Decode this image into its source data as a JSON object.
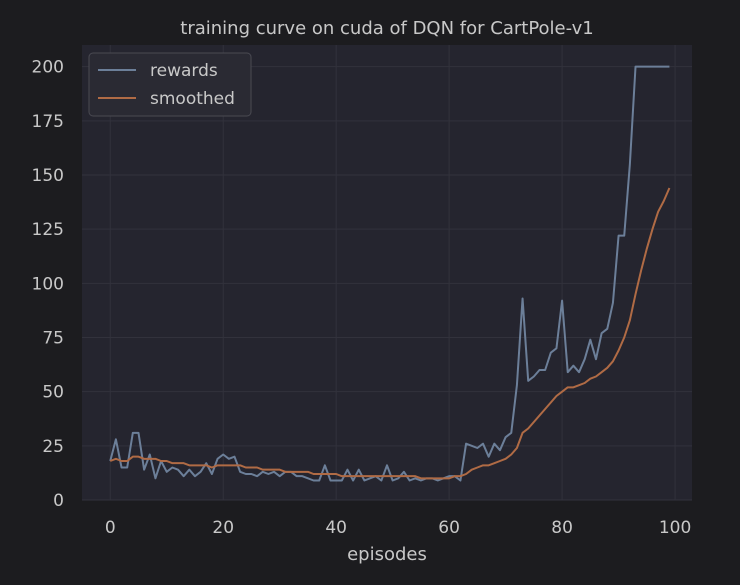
{
  "chart_data": {
    "type": "line",
    "title": "training curve on cuda of DQN for CartPole-v1",
    "xlabel": "episodes",
    "ylabel": "",
    "xlim": [
      -5,
      103
    ],
    "ylim": [
      0,
      210
    ],
    "xticks": [
      0,
      20,
      40,
      60,
      80,
      100
    ],
    "yticks": [
      0,
      25,
      50,
      75,
      100,
      125,
      150,
      175,
      200
    ],
    "grid": true,
    "legend_position": "top-left",
    "colors": {
      "figure_bg": "#1c1c1f",
      "axes_bg": "#25252f",
      "grid": "#32323c",
      "text": "#c8c8c8",
      "legend_bg": "#2a2a33",
      "legend_border": "#4a4a52"
    },
    "x": [
      0,
      1,
      2,
      3,
      4,
      5,
      6,
      7,
      8,
      9,
      10,
      11,
      12,
      13,
      14,
      15,
      16,
      17,
      18,
      19,
      20,
      21,
      22,
      23,
      24,
      25,
      26,
      27,
      28,
      29,
      30,
      31,
      32,
      33,
      34,
      35,
      36,
      37,
      38,
      39,
      40,
      41,
      42,
      43,
      44,
      45,
      46,
      47,
      48,
      49,
      50,
      51,
      52,
      53,
      54,
      55,
      56,
      57,
      58,
      59,
      60,
      61,
      62,
      63,
      64,
      65,
      66,
      67,
      68,
      69,
      70,
      71,
      72,
      73,
      74,
      75,
      76,
      77,
      78,
      79,
      80,
      81,
      82,
      83,
      84,
      85,
      86,
      87,
      88,
      89,
      90,
      91,
      92,
      93,
      94,
      95,
      96,
      97,
      98,
      99
    ],
    "series": [
      {
        "name": "rewards",
        "color": "#6c7f99",
        "values": [
          18,
          28,
          15,
          15,
          31,
          31,
          14,
          21,
          10,
          18,
          13,
          15,
          14,
          11,
          14,
          11,
          13,
          17,
          12,
          19,
          21,
          19,
          20,
          13,
          12,
          12,
          11,
          13,
          12,
          13,
          11,
          13,
          13,
          11,
          11,
          10,
          9,
          9,
          16,
          9,
          9,
          9,
          14,
          9,
          14,
          9,
          10,
          11,
          9,
          16,
          9,
          10,
          13,
          9,
          10,
          9,
          10,
          10,
          9,
          10,
          11,
          11,
          9,
          26,
          25,
          24,
          26,
          20,
          26,
          23,
          29,
          31,
          53,
          93,
          55,
          57,
          60,
          60,
          68,
          70,
          92,
          59,
          62,
          59,
          65,
          74,
          65,
          77,
          79,
          91,
          122,
          122,
          155,
          200,
          200,
          200,
          200,
          200,
          200,
          200
        ]
      },
      {
        "name": "smoothed",
        "color": "#b06b45",
        "values": [
          18,
          19,
          18,
          18,
          20,
          20,
          19,
          19,
          19,
          18,
          18,
          17,
          17,
          17,
          16,
          16,
          16,
          16,
          15,
          16,
          16,
          16,
          16,
          16,
          15,
          15,
          15,
          14,
          14,
          14,
          14,
          13,
          13,
          13,
          13,
          13,
          12,
          12,
          12,
          12,
          12,
          11,
          11,
          11,
          11,
          11,
          11,
          11,
          11,
          11,
          11,
          11,
          11,
          11,
          11,
          10,
          10,
          10,
          10,
          10,
          10,
          11,
          11,
          12,
          14,
          15,
          16,
          16,
          17,
          18,
          19,
          21,
          24,
          31,
          33,
          36,
          39,
          42,
          45,
          48,
          50,
          52,
          52,
          53,
          54,
          56,
          57,
          59,
          61,
          64,
          69,
          75,
          83,
          95,
          106,
          116,
          125,
          133,
          138,
          144
        ]
      }
    ]
  }
}
